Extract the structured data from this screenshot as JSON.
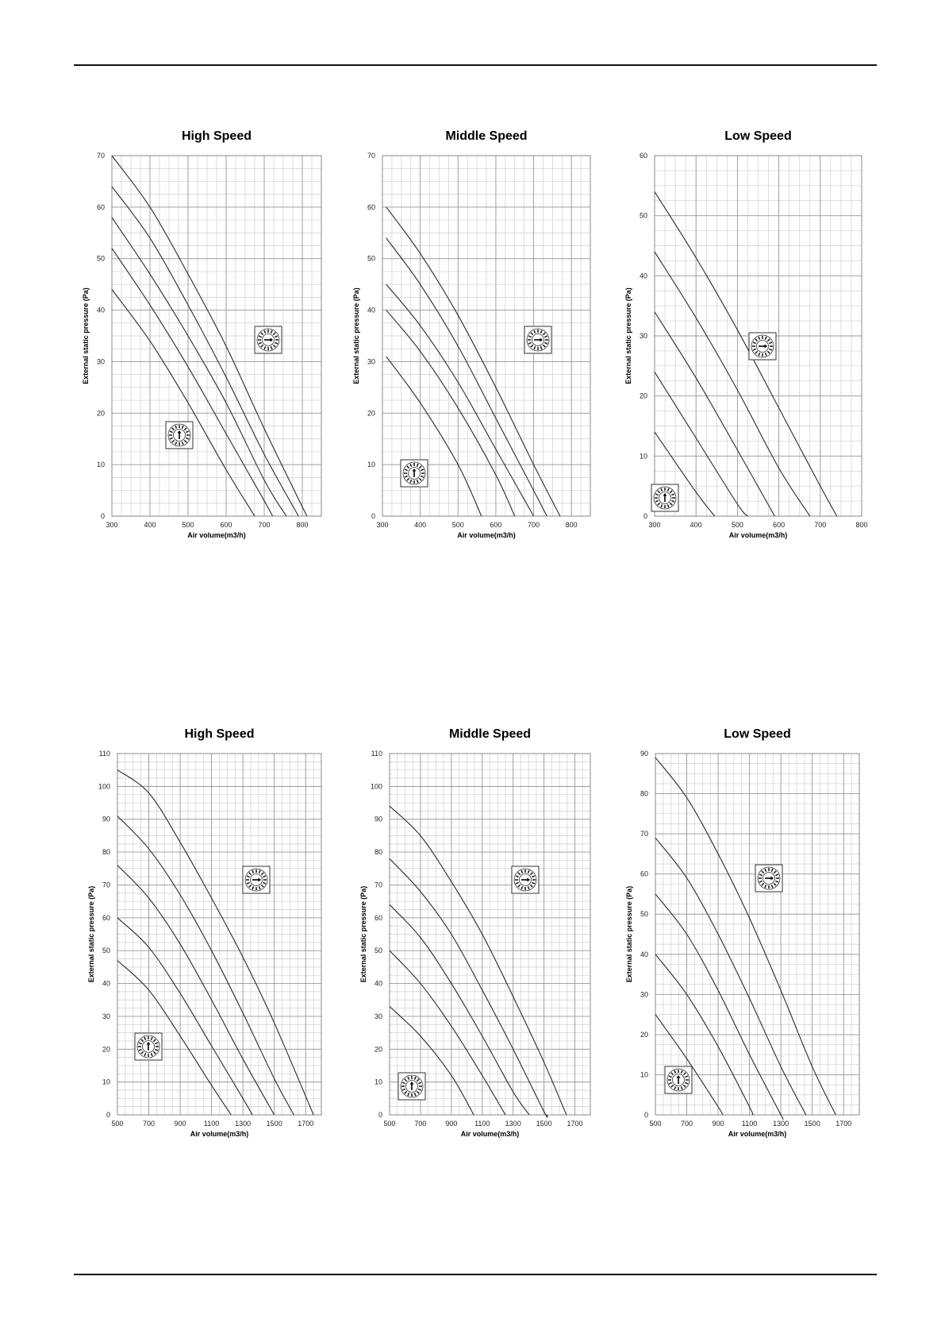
{
  "charts": [
    {
      "title": "High Speed",
      "xlabel": "Air volume(m3/h)",
      "ylabel": "External static pressure (Pa)",
      "xlim": [
        300,
        850
      ],
      "ylim": [
        0,
        70
      ],
      "xticks": [
        300,
        400,
        500,
        600,
        700,
        800
      ],
      "yticks": [
        0,
        10,
        20,
        30,
        40,
        50,
        60,
        70
      ],
      "dial_top": {
        "type": "dial",
        "orientation": "right",
        "position": "upper-right"
      },
      "dial_bottom": {
        "type": "dial",
        "orientation": "up",
        "position": "middle-left"
      }
    },
    {
      "title": "Middle Speed",
      "xlabel": "Air volume(m3/h)",
      "ylabel": "External static pressure (Pa)",
      "xlim": [
        300,
        850
      ],
      "ylim": [
        0,
        70
      ],
      "xticks": [
        300,
        400,
        500,
        600,
        700,
        800
      ],
      "yticks": [
        0,
        10,
        20,
        30,
        40,
        50,
        60,
        70
      ],
      "dial_top": {
        "type": "dial",
        "orientation": "right",
        "position": "upper-right"
      },
      "dial_bottom": {
        "type": "dial",
        "orientation": "up",
        "position": "lower-left"
      }
    },
    {
      "title": "Low Speed",
      "xlabel": "Air volume(m3/h)",
      "ylabel": "External static pressure (Pa)",
      "xlim": [
        300,
        800
      ],
      "ylim": [
        0,
        60
      ],
      "xticks": [
        300,
        400,
        500,
        600,
        700,
        800
      ],
      "yticks": [
        0,
        10,
        20,
        30,
        40,
        50,
        60
      ],
      "dial_top": {
        "type": "dial",
        "orientation": "right",
        "position": "upper-right"
      },
      "dial_bottom": {
        "type": "dial",
        "orientation": "up",
        "position": "lower-left"
      }
    },
    {
      "title": "High Speed",
      "xlabel": "Air volume(m3/h)",
      "ylabel": "External static pressure (Pa)",
      "xlim": [
        500,
        1800
      ],
      "ylim": [
        0,
        110
      ],
      "xticks": [
        500,
        700,
        900,
        1100,
        1300,
        1500,
        1700
      ],
      "yticks": [
        0,
        10,
        20,
        30,
        40,
        50,
        60,
        70,
        80,
        90,
        100,
        110
      ],
      "dial_top": {
        "type": "dial",
        "orientation": "right",
        "position": "upper-right"
      },
      "dial_bottom": {
        "type": "dial",
        "orientation": "up",
        "position": "lower-left"
      }
    },
    {
      "title": "Middle Speed",
      "xlabel": "Air volume(m3/h)",
      "ylabel": "External static pressure (Pa)",
      "xlim": [
        500,
        1800
      ],
      "ylim": [
        0,
        110
      ],
      "xticks": [
        500,
        700,
        900,
        1100,
        1300,
        1500,
        1700
      ],
      "yticks": [
        0,
        10,
        20,
        30,
        40,
        50,
        60,
        70,
        80,
        90,
        100,
        110
      ],
      "dial_top": {
        "type": "dial",
        "orientation": "right",
        "position": "upper-right"
      },
      "dial_bottom": {
        "type": "dial",
        "orientation": "up",
        "position": "lower-left"
      }
    },
    {
      "title": "Low Speed",
      "xlabel": "Air volume(m3/h)",
      "ylabel": "External static pressure (Pa)",
      "xlim": [
        500,
        1800
      ],
      "ylim": [
        0,
        90
      ],
      "xticks": [
        500,
        700,
        900,
        1100,
        1300,
        1500,
        1700
      ],
      "yticks": [
        0,
        10,
        20,
        30,
        40,
        50,
        60,
        70,
        80,
        90
      ],
      "dial_top": {
        "type": "dial",
        "orientation": "right",
        "position": "upper-right"
      },
      "dial_bottom": {
        "type": "dial",
        "orientation": "up",
        "position": "lower-left"
      }
    }
  ],
  "chart_data": [
    {
      "type": "line",
      "title": "High Speed",
      "xlabel": "Air volume(m3/h)",
      "ylabel": "External static pressure (Pa)",
      "xlim": [
        300,
        850
      ],
      "ylim": [
        0,
        70
      ],
      "grid": true,
      "series": [
        {
          "x": [
            300,
            400,
            500,
            600,
            700,
            812
          ],
          "y": [
            70,
            60,
            47,
            33,
            17,
            0
          ]
        },
        {
          "x": [
            300,
            400,
            500,
            600,
            700,
            790
          ],
          "y": [
            64,
            54,
            41,
            27,
            12,
            0
          ]
        },
        {
          "x": [
            300,
            400,
            500,
            600,
            700,
            758
          ],
          "y": [
            58,
            47,
            35,
            22,
            7,
            0
          ]
        },
        {
          "x": [
            300,
            400,
            500,
            600,
            700,
            722
          ],
          "y": [
            52,
            41,
            29,
            16,
            3,
            0
          ]
        },
        {
          "x": [
            300,
            400,
            500,
            600,
            675
          ],
          "y": [
            44,
            34,
            22,
            9,
            0
          ]
        }
      ]
    },
    {
      "type": "line",
      "title": "Middle Speed",
      "xlabel": "Air volume(m3/h)",
      "ylabel": "External static pressure (Pa)",
      "xlim": [
        300,
        850
      ],
      "ylim": [
        0,
        70
      ],
      "grid": true,
      "series": [
        {
          "x": [
            310,
            400,
            500,
            600,
            700,
            770
          ],
          "y": [
            60,
            51,
            39,
            25,
            10,
            0
          ]
        },
        {
          "x": [
            310,
            400,
            500,
            600,
            700,
            735
          ],
          "y": [
            54,
            45,
            33,
            19,
            5,
            0
          ]
        },
        {
          "x": [
            310,
            400,
            500,
            600,
            700
          ],
          "y": [
            45,
            37,
            26,
            13,
            0
          ]
        },
        {
          "x": [
            310,
            400,
            500,
            600,
            650
          ],
          "y": [
            40,
            32,
            21,
            8,
            0
          ]
        },
        {
          "x": [
            310,
            400,
            500,
            562
          ],
          "y": [
            31,
            22,
            10,
            0
          ]
        }
      ]
    },
    {
      "type": "line",
      "title": "Low Speed",
      "xlabel": "Air volume(m3/h)",
      "ylabel": "External static pressure (Pa)",
      "xlim": [
        300,
        800
      ],
      "ylim": [
        0,
        60
      ],
      "grid": true,
      "series": [
        {
          "x": [
            300,
            400,
            500,
            600,
            700,
            740
          ],
          "y": [
            54,
            43,
            31,
            18,
            5,
            0
          ]
        },
        {
          "x": [
            300,
            400,
            500,
            600,
            675
          ],
          "y": [
            44,
            33,
            21,
            8,
            0
          ]
        },
        {
          "x": [
            300,
            400,
            500,
            590
          ],
          "y": [
            34,
            23,
            11,
            0
          ]
        },
        {
          "x": [
            300,
            400,
            500,
            525
          ],
          "y": [
            24,
            13,
            2,
            0
          ]
        },
        {
          "x": [
            300,
            400,
            445
          ],
          "y": [
            14,
            4,
            0
          ]
        }
      ]
    },
    {
      "type": "line",
      "title": "High Speed",
      "xlabel": "Air volume(m3/h)",
      "ylabel": "External static pressure (Pa)",
      "xlim": [
        500,
        1800
      ],
      "ylim": [
        0,
        110
      ],
      "grid": true,
      "series": [
        {
          "x": [
            500,
            700,
            900,
            1100,
            1300,
            1500,
            1750
          ],
          "y": [
            105,
            98,
            83,
            66,
            48,
            28,
            0
          ]
        },
        {
          "x": [
            500,
            700,
            900,
            1100,
            1300,
            1500,
            1625
          ],
          "y": [
            91,
            81,
            67,
            50,
            31,
            11,
            0
          ]
        },
        {
          "x": [
            500,
            700,
            900,
            1100,
            1300,
            1500
          ],
          "y": [
            76,
            66,
            52,
            35,
            17,
            0
          ]
        },
        {
          "x": [
            500,
            700,
            900,
            1100,
            1300,
            1360
          ],
          "y": [
            60,
            51,
            37,
            21,
            5,
            0
          ]
        },
        {
          "x": [
            500,
            700,
            900,
            1100,
            1225
          ],
          "y": [
            47,
            38,
            24,
            9,
            0
          ]
        }
      ]
    },
    {
      "type": "line",
      "title": "Middle Speed",
      "xlabel": "Air volume(m3/h)",
      "ylabel": "External static pressure (Pa)",
      "xlim": [
        500,
        1800
      ],
      "ylim": [
        0,
        110
      ],
      "grid": true,
      "series": [
        {
          "x": [
            500,
            700,
            900,
            1100,
            1300,
            1500,
            1645
          ],
          "y": [
            94,
            85,
            71,
            55,
            36,
            16,
            0
          ]
        },
        {
          "x": [
            500,
            700,
            900,
            1100,
            1300,
            1500,
            1520
          ],
          "y": [
            78,
            68,
            55,
            38,
            20,
            1,
            0
          ]
        },
        {
          "x": [
            500,
            700,
            900,
            1100,
            1300,
            1405
          ],
          "y": [
            64,
            54,
            40,
            24,
            7,
            0
          ]
        },
        {
          "x": [
            500,
            700,
            900,
            1100,
            1250
          ],
          "y": [
            50,
            40,
            27,
            12,
            0
          ]
        },
        {
          "x": [
            500,
            700,
            900,
            1045
          ],
          "y": [
            33,
            24,
            12,
            0
          ]
        }
      ]
    },
    {
      "type": "line",
      "title": "Low Speed",
      "xlabel": "Air volume(m3/h)",
      "ylabel": "External static pressure (Pa)",
      "xlim": [
        500,
        1800
      ],
      "ylim": [
        0,
        90
      ],
      "grid": true,
      "series": [
        {
          "x": [
            500,
            700,
            900,
            1100,
            1300,
            1500,
            1650
          ],
          "y": [
            89,
            79,
            65,
            49,
            31,
            12,
            0
          ]
        },
        {
          "x": [
            500,
            700,
            900,
            1100,
            1300,
            1460
          ],
          "y": [
            69,
            59,
            45,
            29,
            12,
            0
          ]
        },
        {
          "x": [
            500,
            700,
            900,
            1100,
            1300,
            1300
          ],
          "y": [
            55,
            45,
            31,
            15,
            0,
            0
          ]
        },
        {
          "x": [
            500,
            700,
            900,
            1100,
            1120
          ],
          "y": [
            40,
            30,
            17,
            2,
            0
          ]
        },
        {
          "x": [
            500,
            700,
            900,
            930
          ],
          "y": [
            25,
            14,
            2,
            0
          ]
        }
      ]
    }
  ]
}
